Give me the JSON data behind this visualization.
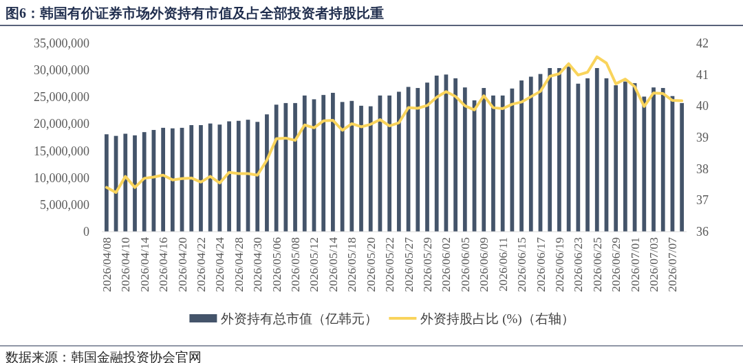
{
  "chart_data": {
    "type": "bar",
    "title": "图6：韩国有价证券市场外资持有市值及占全部投资者持股比重",
    "annotations": [
      "数据来源：韩国金融投资协会官网"
    ],
    "categories": [
      "2026/04/08",
      null,
      "2026/04/10",
      null,
      "2026/04/14",
      null,
      "2026/04/16",
      null,
      "2026/04/20",
      null,
      "2026/04/22",
      null,
      "2026/04/24",
      null,
      "2026/04/28",
      null,
      "2026/04/30",
      null,
      "2026/05/06",
      null,
      "2026/05/08",
      null,
      "2026/05/12",
      null,
      "2026/05/14",
      null,
      "2026/05/18",
      null,
      "2026/05/20",
      null,
      "2026/05/22",
      null,
      "2026/05/27",
      null,
      "2026/05/29",
      null,
      "2026/06/02",
      null,
      "2026/06/05",
      null,
      "2026/06/09",
      null,
      "2026/06/11",
      null,
      "2026/06/15",
      null,
      "2026/06/17",
      null,
      "2026/06/19",
      null,
      "2026/06/23",
      null,
      "2026/06/25",
      null,
      "2026/06/29",
      null,
      "2026/07/01",
      null,
      "2026/07/03",
      null,
      "2026/07/07",
      null
    ],
    "series": [
      {
        "name": "外资持有总市值（亿韩元）",
        "color": "#44546a",
        "values": [
          18100000,
          17800000,
          18200000,
          17900000,
          18500000,
          18900000,
          19300000,
          19200000,
          19300000,
          19800000,
          19800000,
          20100000,
          19900000,
          20500000,
          20600000,
          20800000,
          20400000,
          21800000,
          23600000,
          23900000,
          23900000,
          25300000,
          24600000,
          25400000,
          25800000,
          24100000,
          24300000,
          23400000,
          23300000,
          25300000,
          25300000,
          26000000,
          26900000,
          26700000,
          27700000,
          29000000,
          29200000,
          28500000,
          26800000,
          24400000,
          26700000,
          25300000,
          25300000,
          26600000,
          28100000,
          28800000,
          29300000,
          30400000,
          30400000,
          30700000,
          27500000,
          28500000,
          30400000,
          28500000,
          27200000,
          27900000,
          27600000,
          25100000,
          26800000,
          26700000,
          25200000,
          23900000
        ]
      },
      {
        "name": "外资持股占比 (%)（右轴）",
        "type": "line",
        "axis": "y2",
        "color": "#f9d45c",
        "values": [
          37.41,
          37.25,
          37.76,
          37.41,
          37.7,
          37.74,
          37.8,
          37.65,
          37.69,
          37.71,
          37.58,
          37.76,
          37.55,
          37.89,
          37.85,
          37.85,
          37.8,
          38.28,
          38.96,
          38.98,
          38.91,
          39.4,
          39.31,
          39.53,
          39.55,
          39.23,
          39.44,
          39.34,
          39.42,
          39.57,
          39.37,
          39.47,
          39.95,
          39.93,
          40.02,
          40.28,
          40.46,
          40.31,
          40.01,
          39.88,
          40.33,
          39.95,
          39.92,
          40.06,
          40.13,
          40.3,
          40.47,
          40.95,
          41.03,
          41.35,
          40.99,
          41.08,
          41.57,
          41.37,
          40.71,
          40.86,
          40.62,
          39.99,
          40.42,
          40.4,
          40.18,
          40.17
        ]
      }
    ],
    "ylim": [
      0,
      35000000
    ],
    "yticks": [
      {
        "value": 0,
        "label": "0"
      },
      {
        "value": 5000000,
        "label": "5,000,000"
      },
      {
        "value": 10000000,
        "label": "10,000,000"
      },
      {
        "value": 15000000,
        "label": "15,000,000"
      },
      {
        "value": 20000000,
        "label": "20,000,000"
      },
      {
        "value": 25000000,
        "label": "25,000,000"
      },
      {
        "value": 30000000,
        "label": "30,000,000"
      },
      {
        "value": 35000000,
        "label": "35,000,000"
      }
    ],
    "y2lim": [
      36,
      42
    ],
    "y2ticks": [
      36,
      37,
      38,
      39,
      40,
      41,
      42
    ],
    "legend": "bottom"
  }
}
